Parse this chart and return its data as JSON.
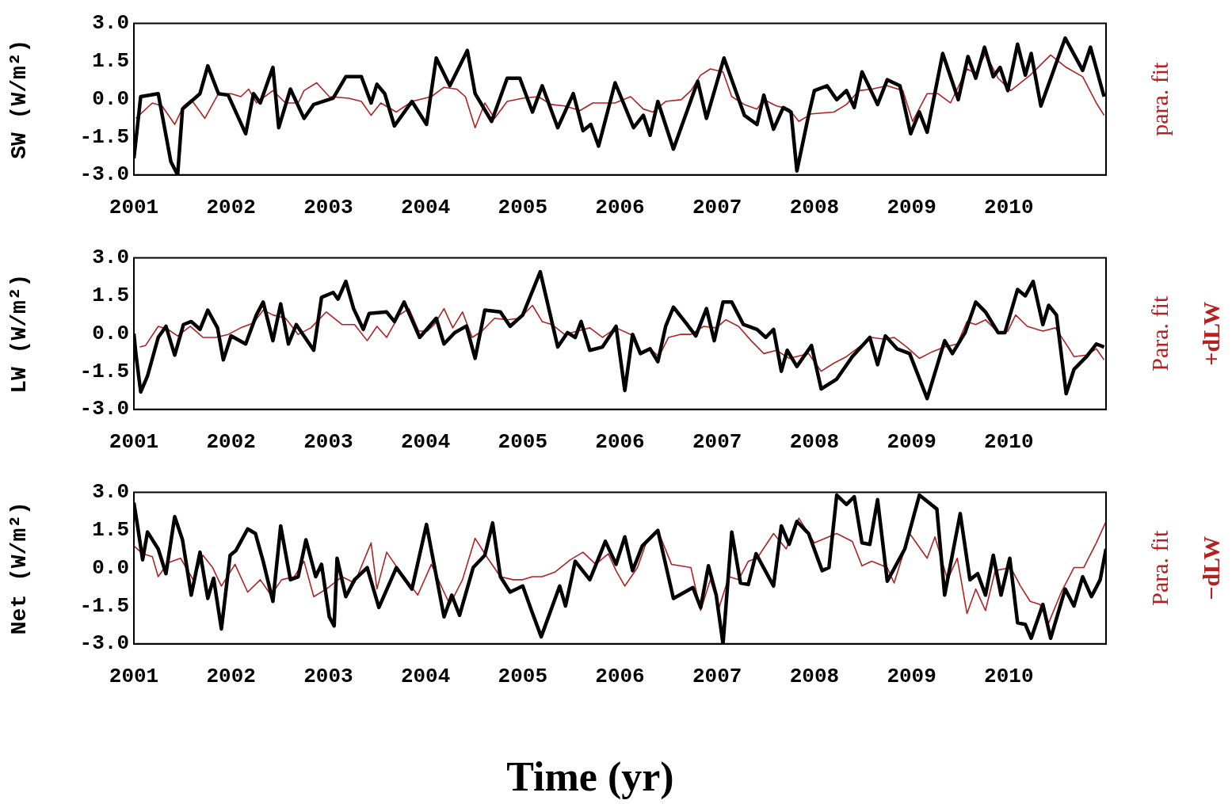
{
  "chart_data": [
    {
      "type": "line",
      "ylabel": "SW (W/m²)",
      "xlim": [
        2001,
        2011
      ],
      "xticks": [
        2001,
        2002,
        2003,
        2004,
        2005,
        2006,
        2007,
        2008,
        2009,
        2010
      ],
      "ylim": [
        -3,
        3
      ],
      "yticks": [
        {
          "value": -3,
          "label": "-3.0"
        },
        {
          "value": -1.5,
          "label": "-1.5"
        },
        {
          "value": 0,
          "label": "0.0"
        },
        {
          "value": 1.5,
          "label": "1.5"
        },
        {
          "value": 3,
          "label": "3.0"
        }
      ],
      "grid": false,
      "legend": false,
      "marker": "none",
      "line_style": "solid",
      "series": [
        {
          "color": "#000000",
          "x": [
            2001.0,
            2001.07,
            2001.25,
            2001.38,
            2001.45,
            2001.5,
            2001.68,
            2001.76,
            2001.87,
            2001.97,
            2002.15,
            2002.23,
            2002.3,
            2002.43,
            2002.49,
            2002.61,
            2002.75,
            2002.85,
            2003.05,
            2003.18,
            2003.34,
            2003.44,
            2003.5,
            2003.58,
            2003.68,
            2003.86,
            2004.01,
            2004.11,
            2004.25,
            2004.43,
            2004.51,
            2004.68,
            2004.84,
            2004.97,
            2005.1,
            2005.2,
            2005.36,
            2005.52,
            2005.62,
            2005.7,
            2005.78,
            2005.95,
            2006.14,
            2006.24,
            2006.31,
            2006.39,
            2006.55,
            2006.8,
            2006.89,
            2007.07,
            2007.28,
            2007.41,
            2007.48,
            2007.58,
            2007.68,
            2007.76,
            2007.82,
            2007.94,
            2008.0,
            2008.13,
            2008.23,
            2008.33,
            2008.41,
            2008.49,
            2008.65,
            2008.75,
            2008.88,
            2008.99,
            2009.08,
            2009.16,
            2009.32,
            2009.48,
            2009.58,
            2009.66,
            2009.75,
            2009.84,
            2009.91,
            2009.99,
            2010.09,
            2010.17,
            2010.23,
            2010.33,
            2010.58,
            2010.76,
            2010.84,
            2010.98
          ],
          "values": [
            -2.35,
            0.1,
            0.22,
            -2.47,
            -3.0,
            -0.39,
            0.22,
            1.32,
            0.22,
            0.16,
            -1.37,
            0.22,
            -0.15,
            1.26,
            -1.13,
            0.4,
            -0.76,
            -0.21,
            0.04,
            0.89,
            0.89,
            -0.15,
            0.59,
            0.22,
            -1.06,
            -0.09,
            -1.0,
            1.63,
            0.53,
            1.93,
            0.22,
            -0.88,
            0.83,
            0.83,
            -0.51,
            0.53,
            -1.13,
            0.22,
            -1.25,
            -1.0,
            -1.86,
            0.65,
            -1.13,
            -0.64,
            -1.43,
            -0.09,
            -1.98,
            0.71,
            -0.76,
            1.63,
            -0.64,
            -1.0,
            0.16,
            -1.19,
            -0.33,
            -0.51,
            -2.84,
            -0.64,
            0.34,
            0.53,
            -0.02,
            0.34,
            -0.33,
            1.08,
            -0.21,
            0.77,
            0.53,
            -1.37,
            -0.51,
            -1.31,
            1.81,
            -0.02,
            1.69,
            0.83,
            2.06,
            0.89,
            1.26,
            0.34,
            2.18,
            0.95,
            1.81,
            -0.27,
            2.42,
            1.14,
            2.06,
            0.1
          ]
        },
        {
          "name": "para. fit",
          "color": "#b22222",
          "x": [
            2001.02,
            2001.19,
            2001.29,
            2001.42,
            2001.51,
            2001.59,
            2001.73,
            2001.87,
            2002.0,
            2002.1,
            2002.18,
            2002.26,
            2002.43,
            2002.56,
            2002.69,
            2002.75,
            2002.88,
            2003.01,
            2003.21,
            2003.34,
            2003.44,
            2003.54,
            2003.7,
            2003.86,
            2004.06,
            2004.19,
            2004.32,
            2004.41,
            2004.51,
            2004.61,
            2004.71,
            2004.84,
            2005.0,
            2005.16,
            2005.29,
            2005.43,
            2005.59,
            2005.72,
            2005.95,
            2006.11,
            2006.24,
            2006.34,
            2006.47,
            2006.63,
            2006.73,
            2006.83,
            2006.93,
            2007.06,
            2007.15,
            2007.28,
            2007.41,
            2007.48,
            2007.61,
            2007.74,
            2007.84,
            2007.97,
            2008.2,
            2008.33,
            2008.46,
            2008.59,
            2008.75,
            2008.91,
            2009.01,
            2009.16,
            2009.27,
            2009.4,
            2009.57,
            2009.66,
            2009.76,
            2009.89,
            2010.02,
            2010.22,
            2010.43,
            2010.59,
            2010.76,
            2010.9,
            2010.98
          ],
          "values": [
            -0.76,
            -0.15,
            -0.27,
            -1.0,
            -0.27,
            -0.02,
            -0.76,
            0.22,
            0.22,
            0.1,
            0.4,
            -0.15,
            0.34,
            -0.15,
            -0.15,
            0.34,
            0.65,
            0.1,
            0.04,
            -0.09,
            -0.64,
            -0.15,
            -0.51,
            -0.09,
            0.1,
            0.47,
            0.4,
            0.1,
            -1.13,
            -0.15,
            -0.76,
            -0.09,
            0.04,
            0.1,
            -0.21,
            -0.27,
            -0.45,
            -0.15,
            -0.15,
            0.1,
            -0.39,
            -0.51,
            -0.09,
            -0.02,
            0.34,
            0.95,
            1.2,
            1.08,
            0.1,
            -0.21,
            -0.39,
            -0.02,
            -0.27,
            -0.39,
            -0.88,
            -0.58,
            -0.51,
            -0.21,
            0.34,
            0.4,
            0.53,
            0.34,
            -0.88,
            0.22,
            0.22,
            -0.15,
            1.2,
            1.02,
            1.81,
            0.83,
            0.34,
            0.95,
            1.75,
            1.26,
            0.89,
            -0.15,
            -0.64
          ]
        }
      ]
    },
    {
      "type": "line",
      "ylabel": "LW (W/m²)",
      "y2label": "+dLW",
      "xlim": [
        2001,
        2011
      ],
      "xticks": [
        2001,
        2002,
        2003,
        2004,
        2005,
        2006,
        2007,
        2008,
        2009,
        2010
      ],
      "ylim": [
        -3,
        3
      ],
      "yticks": [
        {
          "value": -3,
          "label": "-3.0"
        },
        {
          "value": -1.5,
          "label": "-1.5"
        },
        {
          "value": 0,
          "label": "0.0"
        },
        {
          "value": 1.5,
          "label": "1.5"
        },
        {
          "value": 3,
          "label": "3.0"
        }
      ],
      "grid": false,
      "legend": false,
      "marker": "none",
      "line_style": "solid",
      "series": [
        {
          "color": "#000000",
          "x": [
            2001.0,
            2001.02,
            2001.07,
            2001.14,
            2001.25,
            2001.33,
            2001.42,
            2001.51,
            2001.59,
            2001.68,
            2001.76,
            2001.86,
            2001.92,
            2002.0,
            2002.15,
            2002.26,
            2002.33,
            2002.43,
            2002.51,
            2002.59,
            2002.67,
            2002.85,
            2002.93,
            2003.05,
            2003.1,
            2003.18,
            2003.26,
            2003.36,
            2003.42,
            2003.6,
            2003.68,
            2003.78,
            2003.94,
            2004.11,
            2004.19,
            2004.3,
            2004.42,
            2004.51,
            2004.61,
            2004.77,
            2004.87,
            2005.0,
            2005.18,
            2005.36,
            2005.46,
            2005.54,
            2005.6,
            2005.69,
            2005.82,
            2005.96,
            2006.05,
            2006.13,
            2006.21,
            2006.31,
            2006.39,
            2006.47,
            2006.55,
            2006.68,
            2006.78,
            2006.89,
            2006.97,
            2007.06,
            2007.15,
            2007.27,
            2007.41,
            2007.5,
            2007.58,
            2007.66,
            2007.72,
            2007.82,
            2007.97,
            2008.07,
            2008.23,
            2008.39,
            2008.57,
            2008.65,
            2008.73,
            2008.85,
            2008.98,
            2009.16,
            2009.34,
            2009.42,
            2009.55,
            2009.66,
            2009.76,
            2009.89,
            2009.96,
            2010.09,
            2010.17,
            2010.25,
            2010.35,
            2010.41,
            2010.49,
            2010.59,
            2010.67,
            2010.8,
            2010.9,
            2010.98
          ],
          "values": [
            0.0,
            -0.79,
            -2.31,
            -1.68,
            -0.15,
            0.29,
            -0.85,
            0.36,
            0.48,
            0.17,
            0.93,
            0.23,
            -1.04,
            -0.09,
            -0.41,
            0.74,
            1.25,
            -0.28,
            1.18,
            -0.41,
            0.36,
            -0.66,
            1.44,
            1.63,
            1.37,
            2.07,
            0.99,
            0.17,
            0.8,
            0.86,
            0.48,
            1.25,
            -0.15,
            0.61,
            -0.41,
            0.04,
            0.3,
            -0.98,
            0.93,
            0.86,
            0.29,
            0.74,
            2.45,
            -0.53,
            0.04,
            -0.15,
            0.48,
            -0.66,
            -0.53,
            0.29,
            -2.25,
            -0.03,
            -0.79,
            -0.6,
            -1.11,
            0.29,
            1.05,
            0.42,
            -0.09,
            0.99,
            -0.28,
            1.25,
            1.25,
            0.36,
            0.17,
            -0.15,
            0.17,
            -1.49,
            -0.66,
            -1.3,
            -0.47,
            -2.19,
            -1.8,
            -0.91,
            -0.15,
            -1.23,
            -0.09,
            -0.6,
            -0.79,
            -2.57,
            -0.28,
            -0.79,
            0.04,
            1.25,
            0.86,
            0.04,
            0.04,
            1.75,
            1.5,
            2.07,
            0.36,
            1.12,
            0.74,
            -2.38,
            -1.42,
            -0.91,
            -0.41,
            -0.53
          ]
        },
        {
          "name": "Para. fit",
          "color": "#b22222",
          "x": [
            2001.06,
            2001.12,
            2001.25,
            2001.35,
            2001.45,
            2001.58,
            2001.71,
            2001.84,
            2001.97,
            2002.1,
            2002.23,
            2002.33,
            2002.43,
            2002.56,
            2002.69,
            2002.82,
            2002.98,
            2003.14,
            2003.27,
            2003.4,
            2003.5,
            2003.6,
            2003.73,
            2003.83,
            2003.93,
            2004.02,
            2004.09,
            2004.19,
            2004.28,
            2004.38,
            2004.48,
            2004.58,
            2004.71,
            2004.84,
            2004.97,
            2005.1,
            2005.2,
            2005.3,
            2005.43,
            2005.56,
            2005.69,
            2005.82,
            2005.96,
            2006.11,
            2006.21,
            2006.31,
            2006.4,
            2006.5,
            2006.62,
            2006.73,
            2006.86,
            2006.99,
            2007.09,
            2007.22,
            2007.35,
            2007.48,
            2007.61,
            2007.74,
            2007.94,
            2008.07,
            2008.2,
            2008.33,
            2008.46,
            2008.59,
            2008.72,
            2008.82,
            2008.95,
            2009.08,
            2009.21,
            2009.34,
            2009.47,
            2009.57,
            2009.66,
            2009.76,
            2009.89,
            2009.99,
            2010.07,
            2010.19,
            2010.35,
            2010.48,
            2010.61,
            2010.67,
            2010.8,
            2010.9,
            2010.98
          ],
          "values": [
            -0.53,
            -0.47,
            0.29,
            0.17,
            -0.09,
            0.29,
            -0.15,
            -0.15,
            -0.03,
            0.23,
            0.42,
            0.93,
            0.74,
            0.61,
            -0.03,
            0.23,
            0.86,
            0.36,
            0.36,
            -0.28,
            0.29,
            -0.15,
            0.74,
            0.99,
            0.1,
            0.1,
            0.36,
            0.99,
            0.23,
            0.86,
            -0.15,
            0.1,
            0.61,
            0.55,
            0.61,
            1.12,
            0.48,
            0.36,
            -0.03,
            0.1,
            0.23,
            -0.15,
            0.23,
            -0.03,
            -0.72,
            -0.6,
            -0.91,
            -0.15,
            -0.03,
            -0.03,
            0.29,
            0.23,
            0.55,
            0.29,
            -0.28,
            -0.79,
            -0.66,
            -0.98,
            -0.79,
            -1.49,
            -1.17,
            -0.91,
            -0.53,
            -0.15,
            -0.22,
            -0.15,
            -0.53,
            -0.98,
            -0.72,
            -0.53,
            -0.41,
            0.48,
            0.36,
            0.55,
            0.04,
            0.1,
            0.74,
            0.29,
            0.1,
            0.23,
            -0.53,
            -0.91,
            -0.85,
            -0.6,
            -1.04
          ]
        }
      ]
    },
    {
      "type": "line",
      "ylabel": "Net (W/m²)",
      "y2label": "−dLW",
      "xlabel": "Time (yr)",
      "xlim": [
        2001,
        2011
      ],
      "xticks": [
        2001,
        2002,
        2003,
        2004,
        2005,
        2006,
        2007,
        2008,
        2009,
        2010
      ],
      "ylim": [
        -3,
        3
      ],
      "yticks": [
        {
          "value": -3,
          "label": "-3.0"
        },
        {
          "value": -1.5,
          "label": "-1.5"
        },
        {
          "value": 0,
          "label": "0.0"
        },
        {
          "value": 1.5,
          "label": "1.5"
        },
        {
          "value": 3,
          "label": "3.0"
        }
      ],
      "grid": false,
      "legend": false,
      "marker": "none",
      "line_style": "solid",
      "series": [
        {
          "color": "#000000",
          "x": [
            2001.0,
            2001.04,
            2001.09,
            2001.14,
            2001.25,
            2001.33,
            2001.42,
            2001.5,
            2001.59,
            2001.68,
            2001.76,
            2001.82,
            2001.9,
            2001.99,
            2002.05,
            2002.17,
            2002.25,
            2002.33,
            2002.43,
            2002.51,
            2002.61,
            2002.69,
            2002.77,
            2002.87,
            2002.93,
            2003.01,
            2003.06,
            2003.09,
            2003.18,
            2003.27,
            2003.4,
            2003.52,
            2003.7,
            2003.86,
            2004.01,
            2004.19,
            2004.27,
            2004.35,
            2004.49,
            2004.61,
            2004.69,
            2004.77,
            2004.87,
            2005.0,
            2005.09,
            2005.19,
            2005.38,
            2005.44,
            2005.54,
            2005.69,
            2005.85,
            2005.96,
            2006.05,
            2006.13,
            2006.23,
            2006.39,
            2006.55,
            2006.75,
            2006.83,
            2006.91,
            2006.99,
            2007.06,
            2007.15,
            2007.24,
            2007.32,
            2007.4,
            2007.58,
            2007.66,
            2007.74,
            2007.82,
            2007.94,
            2008.08,
            2008.15,
            2008.23,
            2008.33,
            2008.41,
            2008.49,
            2008.57,
            2008.65,
            2008.75,
            2008.93,
            2009.08,
            2009.26,
            2009.34,
            2009.5,
            2009.6,
            2009.68,
            2009.76,
            2009.84,
            2009.92,
            2010.01,
            2010.09,
            2010.17,
            2010.23,
            2010.35,
            2010.43,
            2010.58,
            2010.67,
            2010.76,
            2010.85,
            2010.94,
            2011.0
          ],
          "values": [
            2.59,
            1.61,
            0.33,
            1.43,
            0.76,
            -0.22,
            2.04,
            1.12,
            -1.07,
            0.63,
            -1.2,
            -0.4,
            -2.41,
            0.51,
            0.7,
            1.55,
            1.37,
            0.27,
            -1.32,
            1.67,
            -0.46,
            -0.34,
            1.12,
            -0.34,
            0.15,
            -1.93,
            -2.29,
            0.39,
            -1.13,
            -0.46,
            0.02,
            -1.56,
            0.02,
            -0.83,
            1.73,
            -1.93,
            -1.07,
            -1.87,
            0.02,
            0.51,
            1.79,
            -0.34,
            -0.95,
            -0.71,
            -1.68,
            -2.72,
            -0.71,
            -1.5,
            0.27,
            -0.46,
            1.06,
            0.15,
            1.24,
            -0.1,
            0.88,
            1.49,
            -1.2,
            -0.77,
            -1.56,
            0.09,
            -1.07,
            -3.0,
            1.43,
            -0.59,
            -0.65,
            0.57,
            -0.71,
            1.67,
            0.94,
            1.85,
            1.37,
            -0.1,
            0.02,
            2.89,
            2.52,
            2.83,
            1.0,
            0.94,
            2.71,
            -0.52,
            0.76,
            2.89,
            2.34,
            -1.07,
            2.16,
            -0.46,
            -0.22,
            -1.07,
            0.51,
            -1.07,
            0.39,
            -2.17,
            -2.23,
            -2.78,
            -1.44,
            -2.78,
            -0.83,
            -1.5,
            -0.34,
            -1.13,
            -0.46,
            0.76
          ]
        },
        {
          "name": "Para. fit",
          "color": "#b22222",
          "x": [
            2001.0,
            2001.09,
            2001.19,
            2001.25,
            2001.35,
            2001.48,
            2001.61,
            2001.71,
            2001.81,
            2001.9,
            2002.04,
            2002.17,
            2002.3,
            2002.41,
            2002.52,
            2002.65,
            2002.75,
            2002.85,
            2002.98,
            2003.14,
            2003.27,
            2003.44,
            2003.5,
            2003.6,
            2003.73,
            2003.92,
            2004.06,
            2004.19,
            2004.25,
            2004.38,
            2004.51,
            2004.64,
            2004.77,
            2004.9,
            2005.0,
            2005.1,
            2005.2,
            2005.33,
            2005.49,
            2005.62,
            2005.75,
            2005.88,
            2005.96,
            2006.05,
            2006.18,
            2006.27,
            2006.39,
            2006.53,
            2006.73,
            2006.83,
            2006.93,
            2007.02,
            2007.12,
            2007.22,
            2007.32,
            2007.41,
            2007.58,
            2007.71,
            2007.84,
            2008.0,
            2008.23,
            2008.39,
            2008.49,
            2008.59,
            2008.75,
            2008.82,
            2008.98,
            2009.16,
            2009.24,
            2009.37,
            2009.47,
            2009.57,
            2009.66,
            2009.76,
            2009.86,
            2010.02,
            2010.12,
            2010.22,
            2010.32,
            2010.41,
            2010.54,
            2010.67,
            2010.77,
            2010.9,
            2011.0
          ],
          "values": [
            0.88,
            0.57,
            0.45,
            -0.34,
            0.21,
            0.39,
            -0.46,
            0.51,
            0.02,
            -0.71,
            0.15,
            -0.95,
            -0.46,
            -1.07,
            -0.46,
            -0.34,
            0.27,
            -1.13,
            -0.83,
            -0.34,
            -0.59,
            1.0,
            -0.83,
            0.63,
            -0.1,
            -1.07,
            0.15,
            -0.95,
            -1.44,
            -0.46,
            1.18,
            0.39,
            -0.34,
            -0.46,
            -0.46,
            -0.34,
            -0.34,
            -0.16,
            0.33,
            0.63,
            0.15,
            0.57,
            -0.1,
            -0.71,
            0.02,
            1.0,
            1.49,
            0.15,
            0.02,
            -1.68,
            -0.46,
            -1.56,
            -0.34,
            -0.46,
            0.27,
            0.39,
            1.37,
            0.76,
            1.98,
            1.0,
            1.37,
            1.06,
            0.09,
            0.27,
            0.02,
            -0.59,
            1.37,
            0.39,
            1.24,
            -0.46,
            0.39,
            -1.8,
            -0.83,
            -1.68,
            -0.1,
            0.02,
            -0.71,
            -1.32,
            -1.44,
            -2.17,
            -0.95,
            0.02,
            0.02,
            1.0,
            1.85
          ]
        }
      ]
    }
  ]
}
